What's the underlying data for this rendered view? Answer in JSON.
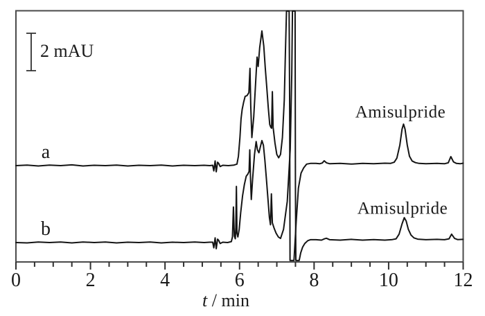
{
  "figure": {
    "background": "#ffffff",
    "colors": {
      "frame": "#4a4a4a",
      "line": "#141414",
      "tick": "#303030",
      "text": "#1a1a1a"
    }
  },
  "chart_data": {
    "type": "line",
    "title": "",
    "xlabel": "t / min",
    "xlabel_parts": {
      "italic": "t",
      "rest": " / min"
    },
    "ylabel": "",
    "y_unit": "mAU",
    "xlim": [
      0,
      12
    ],
    "x_major_ticks": [
      0,
      2,
      4,
      6,
      8,
      10,
      12
    ],
    "x_major_tick_labels": [
      "0",
      "2",
      "4",
      "6",
      "8",
      "10",
      "12"
    ],
    "x_minor_tick_step": 0.5,
    "grid": false,
    "legend_position": "none",
    "scale_bar": {
      "label": "2 mAU",
      "value": 2,
      "unit": "mAU"
    },
    "annotations": [
      {
        "text": "Amisulpride",
        "series": "a",
        "t_min": 10.4
      },
      {
        "text": "Amisulpride",
        "series": "b",
        "t_min": 10.42
      }
    ],
    "series": [
      {
        "name": "a",
        "label": "a",
        "points_t_mau": [
          [
            0,
            0
          ],
          [
            0.3,
            0.03
          ],
          [
            0.6,
            -0.02
          ],
          [
            0.9,
            0.03
          ],
          [
            1.2,
            0
          ],
          [
            1.5,
            0.04
          ],
          [
            1.8,
            -0.02
          ],
          [
            2.1,
            0.02
          ],
          [
            2.4,
            0
          ],
          [
            2.7,
            0.03
          ],
          [
            3,
            -0.02
          ],
          [
            3.3,
            0.02
          ],
          [
            3.6,
            0
          ],
          [
            3.9,
            0.03
          ],
          [
            4.2,
            -0.02
          ],
          [
            4.5,
            0.02
          ],
          [
            4.8,
            0
          ],
          [
            5.05,
            0.02
          ],
          [
            5.2,
            0
          ],
          [
            5.28,
            0.02
          ],
          [
            5.31,
            -0.28
          ],
          [
            5.345,
            0.25
          ],
          [
            5.375,
            -0.33
          ],
          [
            5.41,
            0.18
          ],
          [
            5.44,
            0.12
          ],
          [
            5.48,
            -0.05
          ],
          [
            5.55,
            0.02
          ],
          [
            5.7,
            0
          ],
          [
            5.85,
            0.03
          ],
          [
            5.93,
            0.08
          ],
          [
            5.97,
            0.5
          ],
          [
            6.01,
            1.5
          ],
          [
            6.04,
            2.5
          ],
          [
            6.07,
            3
          ],
          [
            6.11,
            3.4
          ],
          [
            6.15,
            3.7
          ],
          [
            6.2,
            3.74
          ],
          [
            6.25,
            3.9
          ],
          [
            6.28,
            5.2
          ],
          [
            6.3,
            3.2
          ],
          [
            6.33,
            1.5
          ],
          [
            6.38,
            2.6
          ],
          [
            6.43,
            4.4
          ],
          [
            6.47,
            5.8
          ],
          [
            6.5,
            5.3
          ],
          [
            6.54,
            6.3
          ],
          [
            6.6,
            7.2
          ],
          [
            6.65,
            6.4
          ],
          [
            6.69,
            5.2
          ],
          [
            6.73,
            4.2
          ],
          [
            6.77,
            3.1
          ],
          [
            6.81,
            2.2
          ],
          [
            6.84,
            2.05
          ],
          [
            6.86,
            2
          ],
          [
            6.88,
            3.95
          ],
          [
            6.9,
            2.05
          ],
          [
            6.95,
            1.2
          ],
          [
            7,
            0.6
          ],
          [
            7.05,
            0.42
          ],
          [
            7.1,
            0.6
          ],
          [
            7.15,
            1.5
          ],
          [
            7.2,
            3.5
          ],
          [
            7.23,
            6
          ],
          [
            7.26,
            8.26
          ],
          [
            7.33,
            8.26
          ],
          [
            7.345,
            3
          ],
          [
            7.355,
            -5.07
          ],
          [
            7.46,
            -5.07
          ],
          [
            7.52,
            -3
          ],
          [
            7.58,
            -1.2
          ],
          [
            7.65,
            -0.4
          ],
          [
            7.72,
            -0.12
          ],
          [
            7.8,
            0.08
          ],
          [
            7.9,
            0.12
          ],
          [
            8.05,
            0.12
          ],
          [
            8.15,
            0.1
          ],
          [
            8.22,
            0.14
          ],
          [
            8.27,
            0.26
          ],
          [
            8.33,
            0.15
          ],
          [
            8.42,
            0.1
          ],
          [
            8.7,
            0.12
          ],
          [
            9,
            0.08
          ],
          [
            9.3,
            0.12
          ],
          [
            9.6,
            0.1
          ],
          [
            9.9,
            0.13
          ],
          [
            10.05,
            0.12
          ],
          [
            10.15,
            0.18
          ],
          [
            10.22,
            0.4
          ],
          [
            10.3,
            1.1
          ],
          [
            10.36,
            1.95
          ],
          [
            10.4,
            2.22
          ],
          [
            10.44,
            1.95
          ],
          [
            10.5,
            1.1
          ],
          [
            10.56,
            0.5
          ],
          [
            10.63,
            0.25
          ],
          [
            10.72,
            0.16
          ],
          [
            10.82,
            0.12
          ],
          [
            11,
            0.1
          ],
          [
            11.3,
            0.12
          ],
          [
            11.5,
            0.1
          ],
          [
            11.6,
            0.15
          ],
          [
            11.67,
            0.48
          ],
          [
            11.74,
            0.2
          ],
          [
            11.82,
            0.12
          ],
          [
            11.92,
            0.1
          ],
          [
            12,
            0.13
          ]
        ]
      },
      {
        "name": "b",
        "label": "b",
        "points_t_mau": [
          [
            0,
            0
          ],
          [
            0.3,
            -0.02
          ],
          [
            0.6,
            0.03
          ],
          [
            0.9,
            0
          ],
          [
            1.2,
            0.03
          ],
          [
            1.5,
            -0.02
          ],
          [
            1.8,
            0.03
          ],
          [
            2.1,
            0
          ],
          [
            2.4,
            0.03
          ],
          [
            2.7,
            -0.02
          ],
          [
            3,
            0.02
          ],
          [
            3.3,
            0
          ],
          [
            3.6,
            0.03
          ],
          [
            3.9,
            -0.02
          ],
          [
            4.2,
            0.02
          ],
          [
            4.5,
            0
          ],
          [
            4.8,
            0.03
          ],
          [
            5.05,
            0
          ],
          [
            5.2,
            0.02
          ],
          [
            5.28,
            0.02
          ],
          [
            5.31,
            -0.28
          ],
          [
            5.345,
            0.25
          ],
          [
            5.375,
            -0.33
          ],
          [
            5.41,
            0.18
          ],
          [
            5.44,
            0.12
          ],
          [
            5.48,
            -0.05
          ],
          [
            5.55,
            0.02
          ],
          [
            5.68,
            0
          ],
          [
            5.78,
            0.05
          ],
          [
            5.81,
            0.3
          ],
          [
            5.835,
            1.9
          ],
          [
            5.86,
            0.35
          ],
          [
            5.885,
            0.2
          ],
          [
            5.9,
            0.8
          ],
          [
            5.915,
            3
          ],
          [
            5.93,
            0.5
          ],
          [
            5.955,
            0.3
          ],
          [
            5.99,
            0.7
          ],
          [
            6.03,
            1.6
          ],
          [
            6.08,
            2.5
          ],
          [
            6.13,
            3.1
          ],
          [
            6.18,
            3.55
          ],
          [
            6.22,
            3.65
          ],
          [
            6.255,
            3.8
          ],
          [
            6.275,
            4.95
          ],
          [
            6.295,
            3.4
          ],
          [
            6.315,
            2.3
          ],
          [
            6.35,
            3.4
          ],
          [
            6.4,
            4.7
          ],
          [
            6.445,
            5.4
          ],
          [
            6.48,
            4.95
          ],
          [
            6.52,
            4.8
          ],
          [
            6.6,
            5.45
          ],
          [
            6.64,
            5.2
          ],
          [
            6.68,
            4.4
          ],
          [
            6.72,
            3.4
          ],
          [
            6.76,
            2.4
          ],
          [
            6.8,
            1.35
          ],
          [
            6.83,
            0.95
          ],
          [
            6.855,
            2.6
          ],
          [
            6.88,
            1.05
          ],
          [
            6.93,
            0.75
          ],
          [
            6.98,
            0.5
          ],
          [
            7.04,
            0.3
          ],
          [
            7.1,
            0.22
          ],
          [
            7.18,
            0.7
          ],
          [
            7.28,
            2.2
          ],
          [
            7.36,
            5
          ],
          [
            7.4,
            9
          ],
          [
            7.42,
            12.37
          ],
          [
            7.49,
            12.37
          ],
          [
            7.5,
            3
          ],
          [
            7.51,
            -0.96
          ],
          [
            7.6,
            -0.96
          ],
          [
            7.64,
            -0.55
          ],
          [
            7.69,
            -0.25
          ],
          [
            7.75,
            -0.05
          ],
          [
            7.83,
            0.1
          ],
          [
            7.9,
            0.15
          ],
          [
            8.05,
            0.15
          ],
          [
            8.2,
            0.13
          ],
          [
            8.28,
            0.2
          ],
          [
            8.33,
            0.23
          ],
          [
            8.42,
            0.15
          ],
          [
            8.7,
            0.13
          ],
          [
            9,
            0.17
          ],
          [
            9.3,
            0.13
          ],
          [
            9.6,
            0.16
          ],
          [
            9.9,
            0.13
          ],
          [
            10.1,
            0.16
          ],
          [
            10.2,
            0.2
          ],
          [
            10.28,
            0.45
          ],
          [
            10.36,
            1
          ],
          [
            10.42,
            1.33
          ],
          [
            10.47,
            1.15
          ],
          [
            10.53,
            0.7
          ],
          [
            10.6,
            0.4
          ],
          [
            10.68,
            0.25
          ],
          [
            10.78,
            0.18
          ],
          [
            11,
            0.15
          ],
          [
            11.3,
            0.17
          ],
          [
            11.5,
            0.15
          ],
          [
            11.62,
            0.2
          ],
          [
            11.69,
            0.45
          ],
          [
            11.77,
            0.22
          ],
          [
            11.85,
            0.16
          ],
          [
            12,
            0.17
          ]
        ]
      }
    ]
  }
}
